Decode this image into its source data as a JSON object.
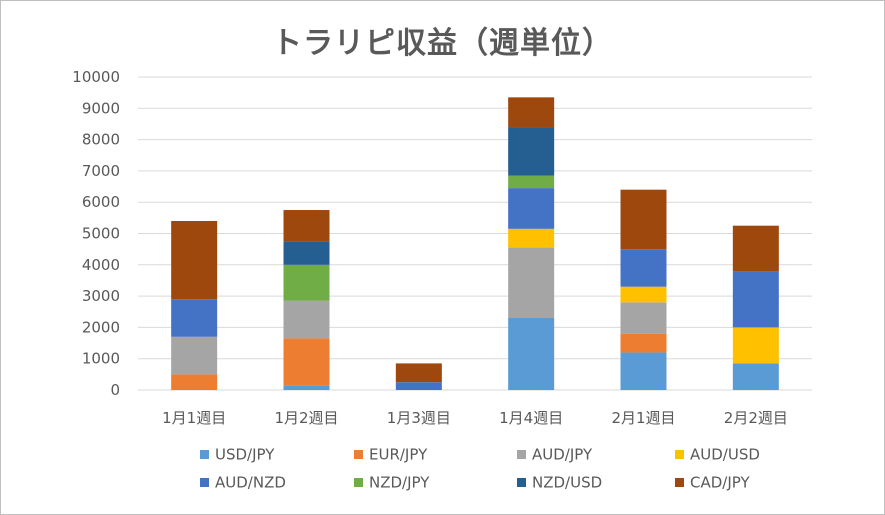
{
  "chart_data": {
    "type": "bar",
    "stacked": true,
    "title": "トラリピ収益（週単位）",
    "categories": [
      "1月1週目",
      "1月2週目",
      "1月3週目",
      "1月4週目",
      "2月1週目",
      "2月2週目"
    ],
    "ylim": [
      0,
      10000
    ],
    "yticks": [
      0,
      1000,
      2000,
      3000,
      4000,
      5000,
      6000,
      7000,
      8000,
      9000,
      10000
    ],
    "grid": true,
    "legend_position": "bottom",
    "series": [
      {
        "name": "USD/JPY",
        "color": "#5B9BD5",
        "values": [
          0,
          150,
          0,
          2300,
          1200,
          850
        ]
      },
      {
        "name": "EUR/JPY",
        "color": "#ED7D31",
        "values": [
          500,
          1500,
          0,
          0,
          600,
          0
        ]
      },
      {
        "name": "AUD/JPY",
        "color": "#A5A5A5",
        "values": [
          1200,
          1200,
          0,
          2250,
          1000,
          0
        ]
      },
      {
        "name": "AUD/USD",
        "color": "#FFC000",
        "values": [
          0,
          0,
          0,
          600,
          500,
          1150
        ]
      },
      {
        "name": "AUD/NZD",
        "color": "#4472C4",
        "values": [
          1200,
          0,
          250,
          1300,
          1200,
          1800
        ]
      },
      {
        "name": "NZD/JPY",
        "color": "#70AD47",
        "values": [
          0,
          1150,
          0,
          400,
          0,
          0
        ]
      },
      {
        "name": "NZD/USD",
        "color": "#255E91",
        "values": [
          0,
          750,
          0,
          1550,
          0,
          0
        ]
      },
      {
        "name": "CAD/JPY",
        "color": "#9E480E",
        "values": [
          2500,
          1000,
          600,
          950,
          1900,
          1450
        ]
      }
    ]
  }
}
